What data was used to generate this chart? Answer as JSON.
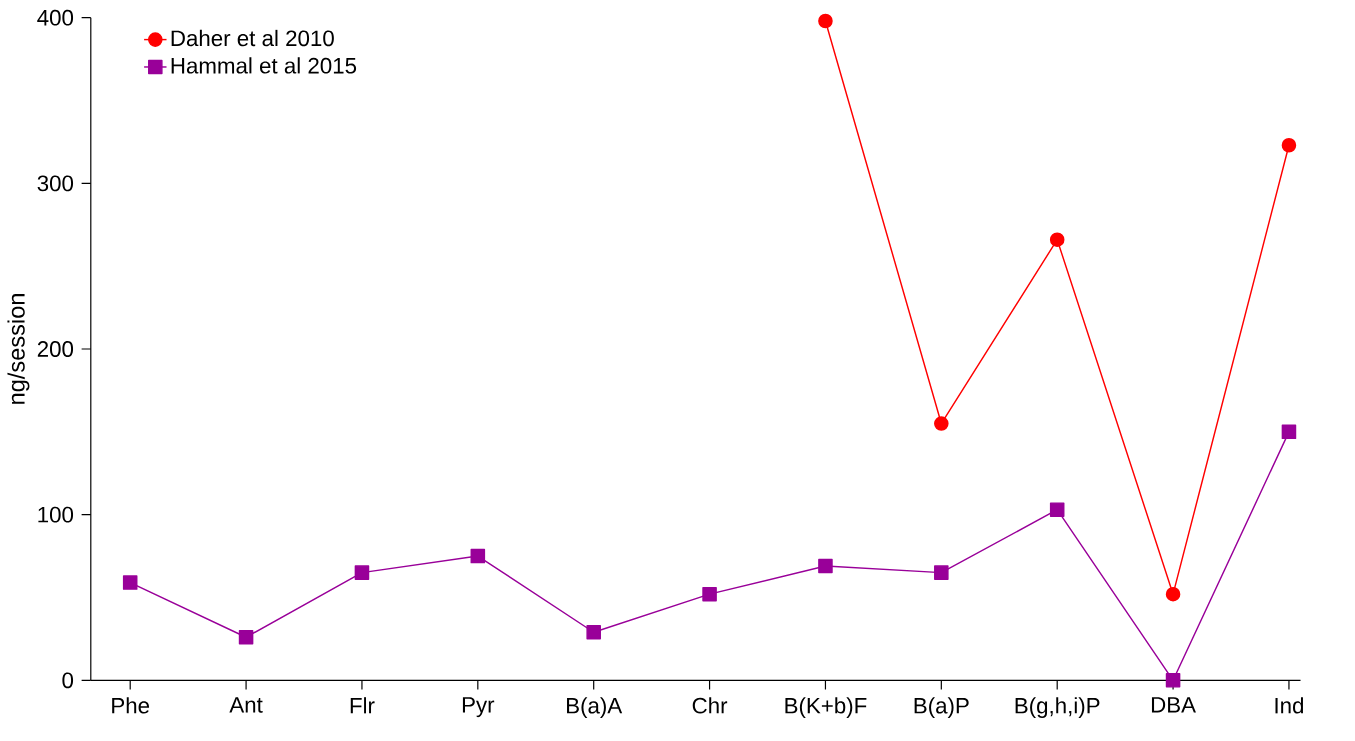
{
  "chart_data": {
    "type": "line",
    "ylabel": "ng/session",
    "categories": [
      "Phe",
      "Ant",
      "Flr",
      "Pyr",
      "B(a)A",
      "Chr",
      "B(K+b)F",
      "B(a)P",
      "B(g,h,i)P",
      "DBA",
      "Ind"
    ],
    "series": [
      {
        "name": "Daher et al 2010",
        "color": "#ff0000",
        "marker": "circle",
        "values": [
          null,
          null,
          null,
          null,
          null,
          null,
          398,
          155,
          266,
          52,
          323
        ]
      },
      {
        "name": "Hammal et al 2015",
        "color": "#990099",
        "marker": "square",
        "values": [
          59,
          26,
          65,
          75,
          29,
          52,
          69,
          65,
          103,
          0,
          150
        ]
      }
    ],
    "ylim": [
      0,
      400
    ],
    "yticks": [
      0,
      100,
      200,
      300,
      400
    ],
    "grid": false,
    "legend": "top left",
    "line_style": "solid"
  }
}
